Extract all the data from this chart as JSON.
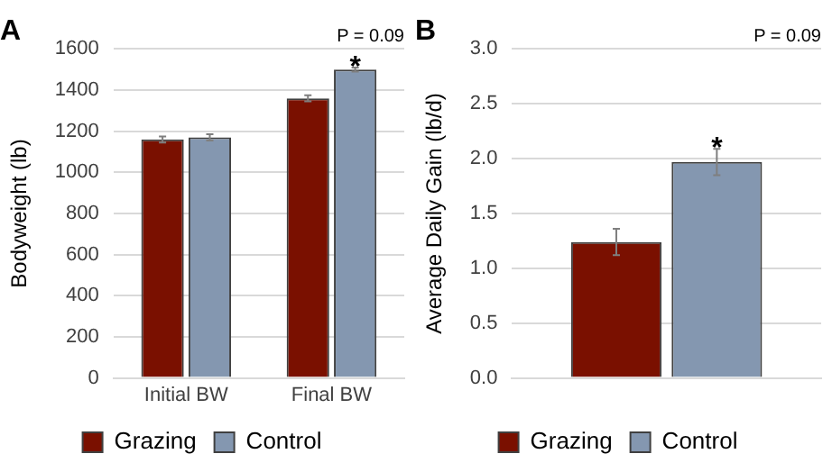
{
  "chart_data": [
    {
      "type": "bar",
      "title": "A",
      "ylabel": "Bodyweight (lb)",
      "categories": [
        "Initial BW",
        "Final BW"
      ],
      "series": [
        {
          "name": "Grazing",
          "color": "#7a1000",
          "values": [
            1160,
            1360
          ],
          "errors": [
            15,
            15
          ]
        },
        {
          "name": "Control",
          "color": "#8497b0",
          "values": [
            1170,
            1500
          ],
          "errors": [
            15,
            10
          ]
        }
      ],
      "ylim": [
        0,
        1600
      ],
      "yticks": [
        0,
        200,
        400,
        600,
        800,
        1000,
        1200,
        1400,
        1600
      ],
      "grid": "y",
      "legend": "bottom",
      "annotations": [
        "*",
        "P = 0.09"
      ]
    },
    {
      "type": "bar",
      "title": "B",
      "ylabel": "Average Daily Gain (lb/d)",
      "categories": [
        null
      ],
      "series": [
        {
          "name": "Grazing",
          "color": "#7a1000",
          "values": [
            1.24
          ],
          "errors": [
            0.12
          ]
        },
        {
          "name": "Control",
          "color": "#8497b0",
          "values": [
            1.97
          ],
          "errors": [
            0.12
          ]
        }
      ],
      "ylim": [
        0,
        3.0
      ],
      "yticks": [
        {
          "value": 0,
          "label": "0.0"
        },
        {
          "value": 0.5,
          "label": "0.5"
        },
        {
          "value": 1,
          "label": "1.0"
        },
        {
          "value": 1.5,
          "label": "1.5"
        },
        {
          "value": 2,
          "label": "2.0"
        },
        {
          "value": 2.5,
          "label": "2.5"
        },
        {
          "value": 3,
          "label": "3.0"
        }
      ],
      "grid": "y",
      "legend": "bottom",
      "annotations": [
        "*",
        "P = 0.09"
      ]
    }
  ]
}
